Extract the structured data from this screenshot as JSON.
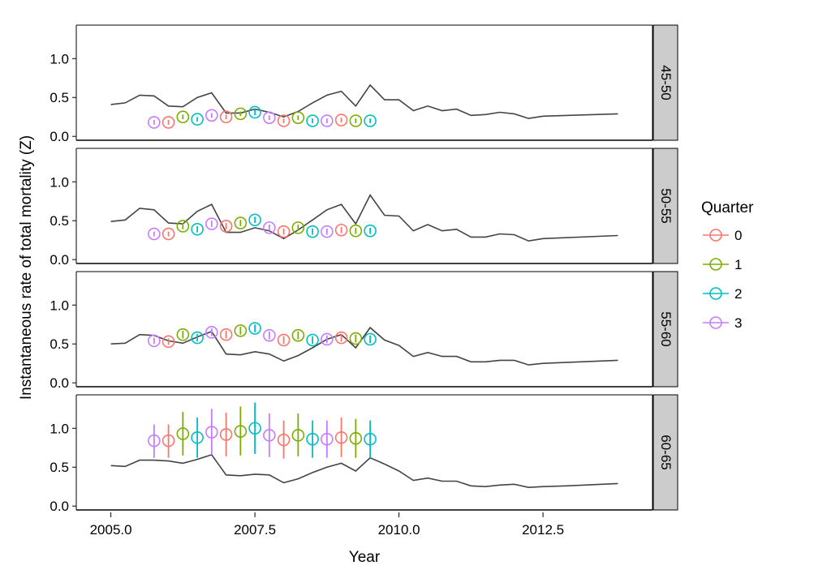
{
  "chart_data": {
    "type": "scatter",
    "xlabel": "Year",
    "ylabel": "Instantaneous rate of total mortality (Z)",
    "xlim": [
      2004.4,
      2014.4
    ],
    "ylim": [
      -0.05,
      1.43
    ],
    "x_ticks": [
      2005.0,
      2007.5,
      2010.0,
      2012.5
    ],
    "x_tick_labels": [
      "2005.0",
      "2007.5",
      "2010.0",
      "2012.5"
    ],
    "y_ticks": [
      0.0,
      0.5,
      1.0
    ],
    "y_tick_labels": [
      "0.0",
      "0.5",
      "1.0"
    ],
    "legend": {
      "title": "Quarter",
      "position": "right",
      "entries": [
        {
          "label": "0",
          "color": "#F8766D"
        },
        {
          "label": "1",
          "color": "#7CAE00"
        },
        {
          "label": "2",
          "color": "#00BFC4"
        },
        {
          "label": "3",
          "color": "#C77CFF"
        }
      ]
    },
    "line_color": "#444444",
    "panels": [
      {
        "label": "45-50",
        "points": [
          {
            "x": 2005.75,
            "q": 3,
            "y": 0.18,
            "lo": 0.15,
            "hi": 0.21
          },
          {
            "x": 2006.0,
            "q": 0,
            "y": 0.18,
            "lo": 0.15,
            "hi": 0.21
          },
          {
            "x": 2006.25,
            "q": 1,
            "y": 0.25,
            "lo": 0.22,
            "hi": 0.28
          },
          {
            "x": 2006.5,
            "q": 2,
            "y": 0.22,
            "lo": 0.19,
            "hi": 0.25
          },
          {
            "x": 2006.75,
            "q": 3,
            "y": 0.27,
            "lo": 0.24,
            "hi": 0.3
          },
          {
            "x": 2007.0,
            "q": 0,
            "y": 0.25,
            "lo": 0.22,
            "hi": 0.28
          },
          {
            "x": 2007.25,
            "q": 1,
            "y": 0.29,
            "lo": 0.26,
            "hi": 0.32
          },
          {
            "x": 2007.5,
            "q": 2,
            "y": 0.31,
            "lo": 0.27,
            "hi": 0.35
          },
          {
            "x": 2007.75,
            "q": 3,
            "y": 0.24,
            "lo": 0.21,
            "hi": 0.27
          },
          {
            "x": 2008.0,
            "q": 0,
            "y": 0.2,
            "lo": 0.17,
            "hi": 0.23
          },
          {
            "x": 2008.25,
            "q": 1,
            "y": 0.24,
            "lo": 0.21,
            "hi": 0.27
          },
          {
            "x": 2008.5,
            "q": 2,
            "y": 0.2,
            "lo": 0.17,
            "hi": 0.23
          },
          {
            "x": 2008.75,
            "q": 3,
            "y": 0.2,
            "lo": 0.17,
            "hi": 0.23
          },
          {
            "x": 2009.0,
            "q": 0,
            "y": 0.21,
            "lo": 0.18,
            "hi": 0.24
          },
          {
            "x": 2009.25,
            "q": 1,
            "y": 0.2,
            "lo": 0.17,
            "hi": 0.23
          },
          {
            "x": 2009.5,
            "q": 2,
            "y": 0.2,
            "lo": 0.17,
            "hi": 0.23
          }
        ],
        "line": [
          {
            "x": 2005.0,
            "y": 0.41
          },
          {
            "x": 2005.25,
            "y": 0.43
          },
          {
            "x": 2005.5,
            "y": 0.53
          },
          {
            "x": 2005.75,
            "y": 0.52
          },
          {
            "x": 2006.0,
            "y": 0.39
          },
          {
            "x": 2006.25,
            "y": 0.38
          },
          {
            "x": 2006.5,
            "y": 0.5
          },
          {
            "x": 2006.75,
            "y": 0.56
          },
          {
            "x": 2007.0,
            "y": 0.3
          },
          {
            "x": 2007.25,
            "y": 0.3
          },
          {
            "x": 2007.5,
            "y": 0.35
          },
          {
            "x": 2007.75,
            "y": 0.31
          },
          {
            "x": 2008.0,
            "y": 0.25
          },
          {
            "x": 2008.25,
            "y": 0.32
          },
          {
            "x": 2008.5,
            "y": 0.43
          },
          {
            "x": 2008.75,
            "y": 0.53
          },
          {
            "x": 2009.0,
            "y": 0.58
          },
          {
            "x": 2009.25,
            "y": 0.39
          },
          {
            "x": 2009.5,
            "y": 0.66
          },
          {
            "x": 2009.75,
            "y": 0.47
          },
          {
            "x": 2010.0,
            "y": 0.47
          },
          {
            "x": 2010.25,
            "y": 0.33
          },
          {
            "x": 2010.5,
            "y": 0.39
          },
          {
            "x": 2010.75,
            "y": 0.33
          },
          {
            "x": 2011.0,
            "y": 0.35
          },
          {
            "x": 2011.25,
            "y": 0.27
          },
          {
            "x": 2011.5,
            "y": 0.28
          },
          {
            "x": 2011.75,
            "y": 0.31
          },
          {
            "x": 2012.0,
            "y": 0.29
          },
          {
            "x": 2012.25,
            "y": 0.23
          },
          {
            "x": 2012.5,
            "y": 0.26
          },
          {
            "x": 2013.8,
            "y": 0.29
          }
        ]
      },
      {
        "label": "50-55",
        "points": [
          {
            "x": 2005.75,
            "q": 3,
            "y": 0.33,
            "lo": 0.3,
            "hi": 0.36
          },
          {
            "x": 2006.0,
            "q": 0,
            "y": 0.33,
            "lo": 0.3,
            "hi": 0.36
          },
          {
            "x": 2006.25,
            "q": 1,
            "y": 0.43,
            "lo": 0.39,
            "hi": 0.47
          },
          {
            "x": 2006.5,
            "q": 2,
            "y": 0.39,
            "lo": 0.35,
            "hi": 0.43
          },
          {
            "x": 2006.75,
            "q": 3,
            "y": 0.46,
            "lo": 0.42,
            "hi": 0.5
          },
          {
            "x": 2007.0,
            "q": 0,
            "y": 0.43,
            "lo": 0.39,
            "hi": 0.47
          },
          {
            "x": 2007.25,
            "q": 1,
            "y": 0.47,
            "lo": 0.43,
            "hi": 0.51
          },
          {
            "x": 2007.5,
            "q": 2,
            "y": 0.51,
            "lo": 0.47,
            "hi": 0.55
          },
          {
            "x": 2007.75,
            "q": 3,
            "y": 0.41,
            "lo": 0.37,
            "hi": 0.45
          },
          {
            "x": 2008.0,
            "q": 0,
            "y": 0.36,
            "lo": 0.32,
            "hi": 0.4
          },
          {
            "x": 2008.25,
            "q": 1,
            "y": 0.41,
            "lo": 0.37,
            "hi": 0.45
          },
          {
            "x": 2008.5,
            "q": 2,
            "y": 0.36,
            "lo": 0.32,
            "hi": 0.4
          },
          {
            "x": 2008.75,
            "q": 3,
            "y": 0.36,
            "lo": 0.32,
            "hi": 0.4
          },
          {
            "x": 2009.0,
            "q": 0,
            "y": 0.38,
            "lo": 0.34,
            "hi": 0.42
          },
          {
            "x": 2009.25,
            "q": 1,
            "y": 0.37,
            "lo": 0.33,
            "hi": 0.41
          },
          {
            "x": 2009.5,
            "q": 2,
            "y": 0.37,
            "lo": 0.33,
            "hi": 0.41
          }
        ],
        "line": [
          {
            "x": 2005.0,
            "y": 0.49
          },
          {
            "x": 2005.25,
            "y": 0.51
          },
          {
            "x": 2005.5,
            "y": 0.66
          },
          {
            "x": 2005.75,
            "y": 0.64
          },
          {
            "x": 2006.0,
            "y": 0.47
          },
          {
            "x": 2006.25,
            "y": 0.46
          },
          {
            "x": 2006.5,
            "y": 0.62
          },
          {
            "x": 2006.75,
            "y": 0.71
          },
          {
            "x": 2007.0,
            "y": 0.35
          },
          {
            "x": 2007.25,
            "y": 0.35
          },
          {
            "x": 2007.5,
            "y": 0.41
          },
          {
            "x": 2007.75,
            "y": 0.37
          },
          {
            "x": 2008.0,
            "y": 0.27
          },
          {
            "x": 2008.25,
            "y": 0.38
          },
          {
            "x": 2008.5,
            "y": 0.51
          },
          {
            "x": 2008.75,
            "y": 0.64
          },
          {
            "x": 2009.0,
            "y": 0.71
          },
          {
            "x": 2009.25,
            "y": 0.46
          },
          {
            "x": 2009.5,
            "y": 0.83
          },
          {
            "x": 2009.75,
            "y": 0.57
          },
          {
            "x": 2010.0,
            "y": 0.56
          },
          {
            "x": 2010.25,
            "y": 0.37
          },
          {
            "x": 2010.5,
            "y": 0.45
          },
          {
            "x": 2010.75,
            "y": 0.37
          },
          {
            "x": 2011.0,
            "y": 0.39
          },
          {
            "x": 2011.25,
            "y": 0.29
          },
          {
            "x": 2011.5,
            "y": 0.29
          },
          {
            "x": 2011.75,
            "y": 0.33
          },
          {
            "x": 2012.0,
            "y": 0.32
          },
          {
            "x": 2012.25,
            "y": 0.24
          },
          {
            "x": 2012.5,
            "y": 0.27
          },
          {
            "x": 2013.8,
            "y": 0.31
          }
        ]
      },
      {
        "label": "55-60",
        "points": [
          {
            "x": 2005.75,
            "q": 3,
            "y": 0.54,
            "lo": 0.5,
            "hi": 0.58
          },
          {
            "x": 2006.0,
            "q": 0,
            "y": 0.53,
            "lo": 0.49,
            "hi": 0.57
          },
          {
            "x": 2006.25,
            "q": 1,
            "y": 0.62,
            "lo": 0.57,
            "hi": 0.67
          },
          {
            "x": 2006.5,
            "q": 2,
            "y": 0.58,
            "lo": 0.53,
            "hi": 0.63
          },
          {
            "x": 2006.75,
            "q": 3,
            "y": 0.65,
            "lo": 0.6,
            "hi": 0.7
          },
          {
            "x": 2007.0,
            "q": 0,
            "y": 0.62,
            "lo": 0.57,
            "hi": 0.67
          },
          {
            "x": 2007.25,
            "q": 1,
            "y": 0.67,
            "lo": 0.62,
            "hi": 0.72
          },
          {
            "x": 2007.5,
            "q": 2,
            "y": 0.7,
            "lo": 0.65,
            "hi": 0.75
          },
          {
            "x": 2007.75,
            "q": 3,
            "y": 0.61,
            "lo": 0.56,
            "hi": 0.66
          },
          {
            "x": 2008.0,
            "q": 0,
            "y": 0.55,
            "lo": 0.5,
            "hi": 0.6
          },
          {
            "x": 2008.25,
            "q": 1,
            "y": 0.61,
            "lo": 0.56,
            "hi": 0.66
          },
          {
            "x": 2008.5,
            "q": 2,
            "y": 0.55,
            "lo": 0.5,
            "hi": 0.6
          },
          {
            "x": 2008.75,
            "q": 3,
            "y": 0.56,
            "lo": 0.51,
            "hi": 0.61
          },
          {
            "x": 2009.0,
            "q": 0,
            "y": 0.58,
            "lo": 0.53,
            "hi": 0.63
          },
          {
            "x": 2009.25,
            "q": 1,
            "y": 0.57,
            "lo": 0.52,
            "hi": 0.62
          },
          {
            "x": 2009.5,
            "q": 2,
            "y": 0.56,
            "lo": 0.51,
            "hi": 0.61
          }
        ],
        "line": [
          {
            "x": 2005.0,
            "y": 0.5
          },
          {
            "x": 2005.25,
            "y": 0.51
          },
          {
            "x": 2005.5,
            "y": 0.62
          },
          {
            "x": 2005.75,
            "y": 0.61
          },
          {
            "x": 2006.0,
            "y": 0.54
          },
          {
            "x": 2006.25,
            "y": 0.51
          },
          {
            "x": 2006.5,
            "y": 0.59
          },
          {
            "x": 2006.75,
            "y": 0.66
          },
          {
            "x": 2007.0,
            "y": 0.37
          },
          {
            "x": 2007.25,
            "y": 0.36
          },
          {
            "x": 2007.5,
            "y": 0.4
          },
          {
            "x": 2007.75,
            "y": 0.37
          },
          {
            "x": 2008.0,
            "y": 0.28
          },
          {
            "x": 2008.25,
            "y": 0.35
          },
          {
            "x": 2008.5,
            "y": 0.45
          },
          {
            "x": 2008.75,
            "y": 0.56
          },
          {
            "x": 2009.0,
            "y": 0.62
          },
          {
            "x": 2009.25,
            "y": 0.45
          },
          {
            "x": 2009.5,
            "y": 0.71
          },
          {
            "x": 2009.75,
            "y": 0.55
          },
          {
            "x": 2010.0,
            "y": 0.48
          },
          {
            "x": 2010.25,
            "y": 0.34
          },
          {
            "x": 2010.5,
            "y": 0.39
          },
          {
            "x": 2010.75,
            "y": 0.34
          },
          {
            "x": 2011.0,
            "y": 0.34
          },
          {
            "x": 2011.25,
            "y": 0.27
          },
          {
            "x": 2011.5,
            "y": 0.27
          },
          {
            "x": 2011.75,
            "y": 0.29
          },
          {
            "x": 2012.0,
            "y": 0.29
          },
          {
            "x": 2012.25,
            "y": 0.23
          },
          {
            "x": 2012.5,
            "y": 0.25
          },
          {
            "x": 2013.8,
            "y": 0.29
          }
        ]
      },
      {
        "label": "60-65",
        "points": [
          {
            "x": 2005.75,
            "q": 3,
            "y": 0.84,
            "lo": 0.62,
            "hi": 1.05
          },
          {
            "x": 2006.0,
            "q": 0,
            "y": 0.84,
            "lo": 0.62,
            "hi": 1.05
          },
          {
            "x": 2006.25,
            "q": 1,
            "y": 0.93,
            "lo": 0.65,
            "hi": 1.21
          },
          {
            "x": 2006.5,
            "q": 2,
            "y": 0.88,
            "lo": 0.62,
            "hi": 1.14
          },
          {
            "x": 2006.75,
            "q": 3,
            "y": 0.95,
            "lo": 0.66,
            "hi": 1.25
          },
          {
            "x": 2007.0,
            "q": 0,
            "y": 0.92,
            "lo": 0.64,
            "hi": 1.2
          },
          {
            "x": 2007.25,
            "q": 1,
            "y": 0.96,
            "lo": 0.65,
            "hi": 1.28
          },
          {
            "x": 2007.5,
            "q": 2,
            "y": 1.0,
            "lo": 0.67,
            "hi": 1.33
          },
          {
            "x": 2007.75,
            "q": 3,
            "y": 0.91,
            "lo": 0.63,
            "hi": 1.19
          },
          {
            "x": 2008.0,
            "q": 0,
            "y": 0.85,
            "lo": 0.61,
            "hi": 1.1
          },
          {
            "x": 2008.25,
            "q": 1,
            "y": 0.91,
            "lo": 0.64,
            "hi": 1.19
          },
          {
            "x": 2008.5,
            "q": 2,
            "y": 0.86,
            "lo": 0.62,
            "hi": 1.1
          },
          {
            "x": 2008.75,
            "q": 3,
            "y": 0.86,
            "lo": 0.62,
            "hi": 1.1
          },
          {
            "x": 2009.0,
            "q": 0,
            "y": 0.88,
            "lo": 0.63,
            "hi": 1.14
          },
          {
            "x": 2009.25,
            "q": 1,
            "y": 0.87,
            "lo": 0.62,
            "hi": 1.12
          },
          {
            "x": 2009.5,
            "q": 2,
            "y": 0.86,
            "lo": 0.62,
            "hi": 1.1
          }
        ],
        "line": [
          {
            "x": 2005.0,
            "y": 0.52
          },
          {
            "x": 2005.25,
            "y": 0.51
          },
          {
            "x": 2005.5,
            "y": 0.59
          },
          {
            "x": 2005.75,
            "y": 0.59
          },
          {
            "x": 2006.0,
            "y": 0.58
          },
          {
            "x": 2006.25,
            "y": 0.55
          },
          {
            "x": 2006.5,
            "y": 0.6
          },
          {
            "x": 2006.75,
            "y": 0.66
          },
          {
            "x": 2007.0,
            "y": 0.4
          },
          {
            "x": 2007.25,
            "y": 0.39
          },
          {
            "x": 2007.5,
            "y": 0.41
          },
          {
            "x": 2007.75,
            "y": 0.4
          },
          {
            "x": 2008.0,
            "y": 0.3
          },
          {
            "x": 2008.25,
            "y": 0.35
          },
          {
            "x": 2008.5,
            "y": 0.43
          },
          {
            "x": 2008.75,
            "y": 0.5
          },
          {
            "x": 2009.0,
            "y": 0.55
          },
          {
            "x": 2009.25,
            "y": 0.45
          },
          {
            "x": 2009.5,
            "y": 0.62
          },
          {
            "x": 2009.75,
            "y": 0.54
          },
          {
            "x": 2010.0,
            "y": 0.45
          },
          {
            "x": 2010.25,
            "y": 0.33
          },
          {
            "x": 2010.5,
            "y": 0.36
          },
          {
            "x": 2010.75,
            "y": 0.32
          },
          {
            "x": 2011.0,
            "y": 0.32
          },
          {
            "x": 2011.25,
            "y": 0.26
          },
          {
            "x": 2011.5,
            "y": 0.25
          },
          {
            "x": 2011.75,
            "y": 0.27
          },
          {
            "x": 2012.0,
            "y": 0.28
          },
          {
            "x": 2012.25,
            "y": 0.24
          },
          {
            "x": 2012.5,
            "y": 0.25
          },
          {
            "x": 2012.9,
            "y": 0.26
          },
          {
            "x": 2013.8,
            "y": 0.29
          }
        ]
      }
    ]
  }
}
